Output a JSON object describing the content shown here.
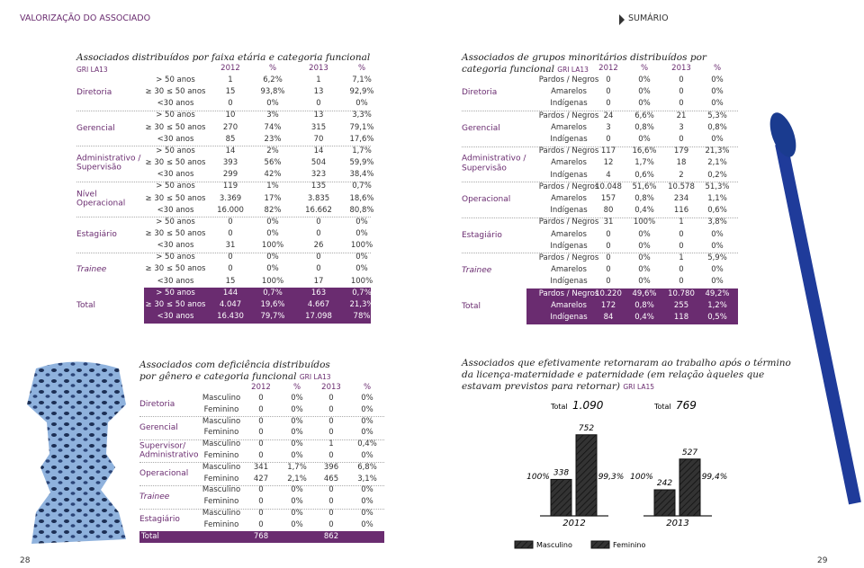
{
  "header": {
    "section": "VALORIZAÇÃO DO ASSOCIADO",
    "menu": "SUMÁRIO"
  },
  "page_numbers": [
    "28",
    "29"
  ],
  "table1": {
    "title": "Associados distribuídos por faixa etária e categoria funcional",
    "tag": "GRI LA13",
    "columns": [
      "2012",
      "%",
      "2013",
      "%"
    ],
    "groups": [
      {
        "label": "Diretoria",
        "rows": [
          [
            "> 50 anos",
            "1",
            "6,2%",
            "1",
            "7,1%"
          ],
          [
            "≥ 30 ≤ 50 anos",
            "15",
            "93,8%",
            "13",
            "92,9%"
          ],
          [
            "<30 anos",
            "0",
            "0%",
            "0",
            "0%"
          ]
        ]
      },
      {
        "label": "Gerencial",
        "rows": [
          [
            "> 50 anos",
            "10",
            "3%",
            "13",
            "3,3%"
          ],
          [
            "≥ 30 ≤ 50 anos",
            "270",
            "74%",
            "315",
            "79,1%"
          ],
          [
            "<30 anos",
            "85",
            "23%",
            "70",
            "17,6%"
          ]
        ]
      },
      {
        "label": "Administrativo / Supervisão",
        "rows": [
          [
            "> 50 anos",
            "14",
            "2%",
            "14",
            "1,7%"
          ],
          [
            "≥ 30 ≤ 50 anos",
            "393",
            "56%",
            "504",
            "59,9%"
          ],
          [
            "<30 anos",
            "299",
            "42%",
            "323",
            "38,4%"
          ]
        ]
      },
      {
        "label": "Nível Operacional",
        "rows": [
          [
            "> 50 anos",
            "119",
            "1%",
            "135",
            "0,7%"
          ],
          [
            "≥ 30 ≤ 50 anos",
            "3.369",
            "17%",
            "3.835",
            "18,6%"
          ],
          [
            "<30 anos",
            "16.000",
            "82%",
            "16.662",
            "80,8%"
          ]
        ]
      },
      {
        "label": "Estagiário",
        "rows": [
          [
            "> 50 anos",
            "0",
            "0%",
            "0",
            "0%"
          ],
          [
            "≥ 30 ≤ 50 anos",
            "0",
            "0%",
            "0",
            "0%"
          ],
          [
            "<30 anos",
            "31",
            "100%",
            "26",
            "100%"
          ]
        ]
      },
      {
        "label": "Trainee",
        "rows": [
          [
            "> 50 anos",
            "0",
            "0%",
            "0",
            "0%"
          ],
          [
            "≥ 30 ≤ 50 anos",
            "0",
            "0%",
            "0",
            "0%"
          ],
          [
            "<30 anos",
            "15",
            "100%",
            "17",
            "100%"
          ]
        ]
      }
    ],
    "total": {
      "label": "Total",
      "rows": [
        [
          "> 50 anos",
          "144",
          "0,7%",
          "163",
          "0,7%"
        ],
        [
          "≥ 30 ≤ 50 anos",
          "4.047",
          "19,6%",
          "4.667",
          "21,3%"
        ],
        [
          "<30 anos",
          "16.430",
          "79,7%",
          "17.098",
          "78%"
        ]
      ]
    }
  },
  "table2": {
    "title": "Associados de grupos minoritários distribuídos por categoria funcional",
    "tag": "GRI LA13",
    "columns": [
      "2012",
      "%",
      "2013",
      "%"
    ],
    "groups": [
      {
        "label": "Diretoria",
        "rows": [
          [
            "Pardos / Negros",
            "0",
            "0%",
            "0",
            "0%"
          ],
          [
            "Amarelos",
            "0",
            "0%",
            "0",
            "0%"
          ],
          [
            "Indígenas",
            "0",
            "0%",
            "0",
            "0%"
          ]
        ]
      },
      {
        "label": "Gerencial",
        "rows": [
          [
            "Pardos / Negros",
            "24",
            "6,6%",
            "21",
            "5,3%"
          ],
          [
            "Amarelos",
            "3",
            "0,8%",
            "3",
            "0,8%"
          ],
          [
            "Indígenas",
            "0",
            "0%",
            "0",
            "0%"
          ]
        ]
      },
      {
        "label": "Administrativo / Supervisão",
        "rows": [
          [
            "Pardos / Negros",
            "117",
            "16,6%",
            "179",
            "21,3%"
          ],
          [
            "Amarelos",
            "12",
            "1,7%",
            "18",
            "2,1%"
          ],
          [
            "Indígenas",
            "4",
            "0,6%",
            "2",
            "0,2%"
          ]
        ]
      },
      {
        "label": "Operacional",
        "rows": [
          [
            "Pardos / Negros",
            "10.048",
            "51,6%",
            "10.578",
            "51,3%"
          ],
          [
            "Amarelos",
            "157",
            "0,8%",
            "234",
            "1,1%"
          ],
          [
            "Indígenas",
            "80",
            "0,4%",
            "116",
            "0,6%"
          ]
        ]
      },
      {
        "label": "Estagiário",
        "rows": [
          [
            "Pardos / Negros",
            "31",
            "100%",
            "1",
            "3,8%"
          ],
          [
            "Amarelos",
            "0",
            "0%",
            "0",
            "0%"
          ],
          [
            "Indígenas",
            "0",
            "0%",
            "0",
            "0%"
          ]
        ]
      },
      {
        "label": "Trainee",
        "rows": [
          [
            "Pardos / Negros",
            "0",
            "0%",
            "1",
            "5,9%"
          ],
          [
            "Amarelos",
            "0",
            "0%",
            "0",
            "0%"
          ],
          [
            "Indígenas",
            "0",
            "0%",
            "0",
            "0%"
          ]
        ]
      }
    ],
    "total": {
      "label": "Total",
      "rows": [
        [
          "Pardos / Negros",
          "10.220",
          "49,6%",
          "10.780",
          "49,2%"
        ],
        [
          "Amarelos",
          "172",
          "0,8%",
          "255",
          "1,2%"
        ],
        [
          "Indígenas",
          "84",
          "0,4%",
          "118",
          "0,5%"
        ]
      ]
    }
  },
  "table3": {
    "title": "Associados com deficiência distribuídos por gênero e categoria funcional",
    "tag": "GRI LA13",
    "columns": [
      "2012",
      "%",
      "2013",
      "%"
    ],
    "groups": [
      {
        "label": "Diretoria",
        "rows": [
          [
            "Masculino",
            "0",
            "0%",
            "0",
            "0%"
          ],
          [
            "Feminino",
            "0",
            "0%",
            "0",
            "0%"
          ]
        ]
      },
      {
        "label": "Gerencial",
        "rows": [
          [
            "Masculino",
            "0",
            "0%",
            "0",
            "0%"
          ],
          [
            "Feminino",
            "0",
            "0%",
            "0",
            "0%"
          ]
        ]
      },
      {
        "label": "Supervisor/ Administrativo",
        "rows": [
          [
            "Masculino",
            "0",
            "0%",
            "1",
            "0,4%"
          ],
          [
            "Feminino",
            "0",
            "0%",
            "0",
            "0%"
          ]
        ]
      },
      {
        "label": "Operacional",
        "rows": [
          [
            "Masculino",
            "341",
            "1,7%",
            "396",
            "6,8%"
          ],
          [
            "Feminino",
            "427",
            "2,1%",
            "465",
            "3,1%"
          ]
        ]
      },
      {
        "label": "Trainee",
        "rows": [
          [
            "Masculino",
            "0",
            "0%",
            "0",
            "0%"
          ],
          [
            "Feminino",
            "0",
            "0%",
            "0",
            "0%"
          ]
        ]
      },
      {
        "label": "Estagiário",
        "rows": [
          [
            "Masculino",
            "0",
            "0%",
            "0",
            "0%"
          ],
          [
            "Feminino",
            "0",
            "0%",
            "0",
            "0%"
          ]
        ]
      }
    ],
    "total": {
      "label": "Total",
      "values": [
        "768",
        "862"
      ]
    }
  },
  "chart": {
    "type": "bar",
    "title": "Associados que efetivamente retornaram ao trabalho após o término da licença-maternidade e paternidade (em relação àqueles que estavam previstos para retornar)",
    "tag": "GRI LA15",
    "categories": [
      "2012",
      "2013"
    ],
    "totals": [
      {
        "label": "Total",
        "value": "1.090"
      },
      {
        "label": "Total",
        "value": "769"
      }
    ],
    "series": [
      {
        "name": "Masculino",
        "color": "#ffffff",
        "values": [
          338,
          242
        ],
        "rates": [
          "100%",
          "100%"
        ]
      },
      {
        "name": "Feminino",
        "color": "#6a2c70",
        "values": [
          752,
          527
        ],
        "rates": [
          "99,3%",
          "99,4%"
        ]
      }
    ]
  }
}
